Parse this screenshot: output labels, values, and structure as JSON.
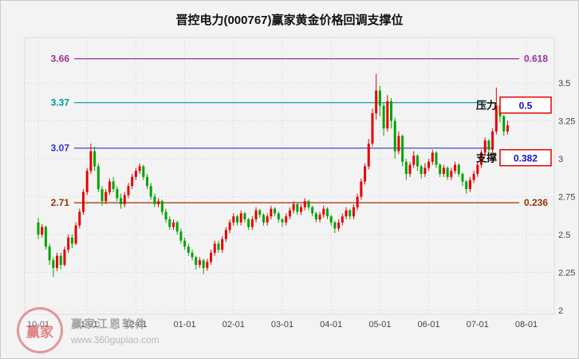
{
  "page": {
    "watermark": {
      "brand": "赢家江恩软件",
      "url": "www.360gupiao.com",
      "seal_text": "赢家"
    }
  },
  "chart_data": {
    "type": "candlestick",
    "title": "晋控电力(000767)赢家黄金价格回调支撑位",
    "ylim": [
      2,
      3.66
    ],
    "grid": true,
    "y_ticks": [
      "3.5",
      "3.25",
      "3",
      "2.75",
      "2.5",
      "2.25",
      "2"
    ],
    "x_ticks": [
      "10-01",
      "11-01",
      "12-01",
      "01-01",
      "02-01",
      "03-01",
      "04-01",
      "05-01",
      "06-01",
      "07-01",
      "08-01"
    ],
    "colors": {
      "up": "#e60000",
      "down": "#00a400",
      "grid": "#cfcfcf",
      "axis_text": "#444444",
      "box_border": "#e60000",
      "box_text": "#1111cc",
      "tag_text": "#111111"
    },
    "levels": [
      {
        "price": 3.66,
        "label": "3.66",
        "ratio": "0.618",
        "color": "#993399",
        "boxed": false,
        "tag": "",
        "tag_dy": 0
      },
      {
        "price": 3.37,
        "label": "3.37",
        "ratio": "0.5",
        "color": "#009999",
        "boxed": true,
        "tag": "压力",
        "tag_dy": 3
      },
      {
        "price": 3.07,
        "label": "3.07",
        "ratio": "0.382",
        "color": "#3333cc",
        "boxed": true,
        "tag": "支撑",
        "tag_dy": 12
      },
      {
        "price": 2.71,
        "label": "2.71",
        "ratio": "0.236",
        "color": "#993300",
        "boxed": false,
        "tag": "",
        "tag_dy": 0
      }
    ],
    "candles_per_month": 13,
    "candles": [
      [
        2.58,
        2.61,
        2.47,
        2.5
      ],
      [
        2.5,
        2.57,
        2.48,
        2.55
      ],
      [
        2.55,
        2.56,
        2.4,
        2.42
      ],
      [
        2.42,
        2.44,
        2.3,
        2.33
      ],
      [
        2.33,
        2.35,
        2.22,
        2.28
      ],
      [
        2.28,
        2.38,
        2.26,
        2.36
      ],
      [
        2.36,
        2.38,
        2.27,
        2.3
      ],
      [
        2.3,
        2.42,
        2.29,
        2.4
      ],
      [
        2.4,
        2.5,
        2.38,
        2.48
      ],
      [
        2.48,
        2.5,
        2.41,
        2.44
      ],
      [
        2.44,
        2.58,
        2.43,
        2.56
      ],
      [
        2.56,
        2.67,
        2.54,
        2.65
      ],
      [
        2.65,
        2.8,
        2.63,
        2.78
      ],
      [
        2.78,
        2.94,
        2.76,
        2.92
      ],
      [
        2.92,
        3.1,
        2.9,
        3.05
      ],
      [
        3.05,
        3.08,
        2.92,
        2.95
      ],
      [
        2.95,
        2.97,
        2.78,
        2.8
      ],
      [
        2.8,
        2.82,
        2.69,
        2.72
      ],
      [
        2.72,
        2.8,
        2.7,
        2.78
      ],
      [
        2.78,
        2.87,
        2.76,
        2.85
      ],
      [
        2.85,
        2.88,
        2.78,
        2.8
      ],
      [
        2.8,
        2.82,
        2.72,
        2.74
      ],
      [
        2.74,
        2.77,
        2.67,
        2.7
      ],
      [
        2.7,
        2.78,
        2.68,
        2.76
      ],
      [
        2.76,
        2.84,
        2.74,
        2.82
      ],
      [
        2.82,
        2.9,
        2.8,
        2.88
      ],
      [
        2.88,
        2.94,
        2.86,
        2.92
      ],
      [
        2.92,
        2.97,
        2.9,
        2.95
      ],
      [
        2.95,
        2.96,
        2.86,
        2.88
      ],
      [
        2.88,
        2.9,
        2.8,
        2.82
      ],
      [
        2.82,
        2.84,
        2.73,
        2.75
      ],
      [
        2.75,
        2.77,
        2.68,
        2.7
      ],
      [
        2.7,
        2.74,
        2.68,
        2.72
      ],
      [
        2.72,
        2.73,
        2.63,
        2.65
      ],
      [
        2.65,
        2.67,
        2.58,
        2.6
      ],
      [
        2.6,
        2.62,
        2.53,
        2.55
      ],
      [
        2.55,
        2.6,
        2.53,
        2.58
      ],
      [
        2.58,
        2.59,
        2.5,
        2.52
      ],
      [
        2.52,
        2.54,
        2.44,
        2.46
      ],
      [
        2.46,
        2.48,
        2.4,
        2.42
      ],
      [
        2.42,
        2.44,
        2.36,
        2.38
      ],
      [
        2.38,
        2.4,
        2.33,
        2.35
      ],
      [
        2.35,
        2.36,
        2.27,
        2.3
      ],
      [
        2.3,
        2.35,
        2.28,
        2.33
      ],
      [
        2.33,
        2.34,
        2.24,
        2.28
      ],
      [
        2.28,
        2.34,
        2.26,
        2.32
      ],
      [
        2.32,
        2.4,
        2.3,
        2.38
      ],
      [
        2.38,
        2.46,
        2.36,
        2.44
      ],
      [
        2.44,
        2.46,
        2.38,
        2.4
      ],
      [
        2.4,
        2.49,
        2.38,
        2.47
      ],
      [
        2.47,
        2.55,
        2.45,
        2.53
      ],
      [
        2.53,
        2.6,
        2.51,
        2.58
      ],
      [
        2.58,
        2.64,
        2.56,
        2.62
      ],
      [
        2.62,
        2.63,
        2.56,
        2.58
      ],
      [
        2.58,
        2.66,
        2.56,
        2.64
      ],
      [
        2.64,
        2.65,
        2.58,
        2.6
      ],
      [
        2.6,
        2.61,
        2.53,
        2.55
      ],
      [
        2.55,
        2.62,
        2.53,
        2.6
      ],
      [
        2.6,
        2.68,
        2.58,
        2.66
      ],
      [
        2.66,
        2.67,
        2.61,
        2.63
      ],
      [
        2.63,
        2.64,
        2.56,
        2.58
      ],
      [
        2.58,
        2.64,
        2.56,
        2.62
      ],
      [
        2.62,
        2.69,
        2.6,
        2.67
      ],
      [
        2.67,
        2.68,
        2.62,
        2.64
      ],
      [
        2.64,
        2.65,
        2.58,
        2.6
      ],
      [
        2.6,
        2.61,
        2.55,
        2.58
      ],
      [
        2.58,
        2.64,
        2.56,
        2.62
      ],
      [
        2.62,
        2.68,
        2.6,
        2.66
      ],
      [
        2.66,
        2.72,
        2.64,
        2.7
      ],
      [
        2.7,
        2.71,
        2.63,
        2.65
      ],
      [
        2.65,
        2.7,
        2.63,
        2.68
      ],
      [
        2.68,
        2.74,
        2.66,
        2.72
      ],
      [
        2.72,
        2.73,
        2.66,
        2.68
      ],
      [
        2.68,
        2.69,
        2.62,
        2.64
      ],
      [
        2.64,
        2.65,
        2.58,
        2.6
      ],
      [
        2.6,
        2.65,
        2.58,
        2.63
      ],
      [
        2.63,
        2.69,
        2.61,
        2.67
      ],
      [
        2.67,
        2.68,
        2.6,
        2.62
      ],
      [
        2.62,
        2.63,
        2.56,
        2.58
      ],
      [
        2.58,
        2.59,
        2.51,
        2.54
      ],
      [
        2.54,
        2.6,
        2.52,
        2.58
      ],
      [
        2.58,
        2.64,
        2.56,
        2.62
      ],
      [
        2.62,
        2.68,
        2.6,
        2.66
      ],
      [
        2.66,
        2.67,
        2.6,
        2.62
      ],
      [
        2.62,
        2.7,
        2.6,
        2.68
      ],
      [
        2.68,
        2.77,
        2.66,
        2.75
      ],
      [
        2.75,
        2.87,
        2.73,
        2.85
      ],
      [
        2.85,
        2.97,
        2.83,
        2.95
      ],
      [
        2.95,
        3.13,
        2.93,
        3.1
      ],
      [
        3.1,
        3.33,
        3.08,
        3.3
      ],
      [
        3.3,
        3.56,
        3.26,
        3.45
      ],
      [
        3.45,
        3.48,
        3.28,
        3.35
      ],
      [
        3.35,
        3.37,
        3.15,
        3.2
      ],
      [
        3.2,
        3.42,
        3.18,
        3.38
      ],
      [
        3.38,
        3.4,
        3.2,
        3.25
      ],
      [
        3.25,
        3.27,
        3.0,
        3.05
      ],
      [
        3.05,
        3.18,
        3.03,
        3.15
      ],
      [
        3.15,
        3.16,
        2.95,
        2.98
      ],
      [
        2.98,
        3.0,
        2.86,
        2.9
      ],
      [
        2.9,
        2.98,
        2.88,
        2.96
      ],
      [
        2.96,
        3.05,
        2.94,
        3.02
      ],
      [
        3.02,
        3.03,
        2.92,
        2.95
      ],
      [
        2.95,
        2.96,
        2.87,
        2.9
      ],
      [
        2.9,
        2.97,
        2.88,
        2.94
      ],
      [
        2.94,
        3.0,
        2.92,
        2.98
      ],
      [
        2.98,
        3.06,
        2.96,
        3.04
      ],
      [
        3.04,
        3.05,
        2.94,
        2.96
      ],
      [
        2.96,
        2.97,
        2.88,
        2.9
      ],
      [
        2.9,
        2.96,
        2.88,
        2.94
      ],
      [
        2.94,
        2.95,
        2.86,
        2.88
      ],
      [
        2.88,
        2.94,
        2.86,
        2.92
      ],
      [
        2.92,
        2.98,
        2.9,
        2.96
      ],
      [
        2.96,
        2.97,
        2.88,
        2.9
      ],
      [
        2.9,
        2.91,
        2.82,
        2.85
      ],
      [
        2.85,
        2.86,
        2.77,
        2.8
      ],
      [
        2.8,
        2.88,
        2.78,
        2.86
      ],
      [
        2.86,
        2.92,
        2.84,
        2.9
      ],
      [
        2.9,
        2.98,
        2.88,
        2.96
      ],
      [
        2.96,
        3.06,
        2.94,
        3.04
      ],
      [
        3.04,
        3.14,
        3.02,
        3.12
      ],
      [
        3.12,
        3.13,
        3.03,
        3.06
      ],
      [
        3.06,
        3.2,
        3.04,
        3.18
      ],
      [
        3.18,
        3.47,
        3.16,
        3.35
      ],
      [
        3.35,
        3.36,
        3.24,
        3.28
      ],
      [
        3.28,
        3.29,
        3.15,
        3.18
      ],
      [
        3.18,
        3.25,
        3.16,
        3.22
      ]
    ]
  }
}
